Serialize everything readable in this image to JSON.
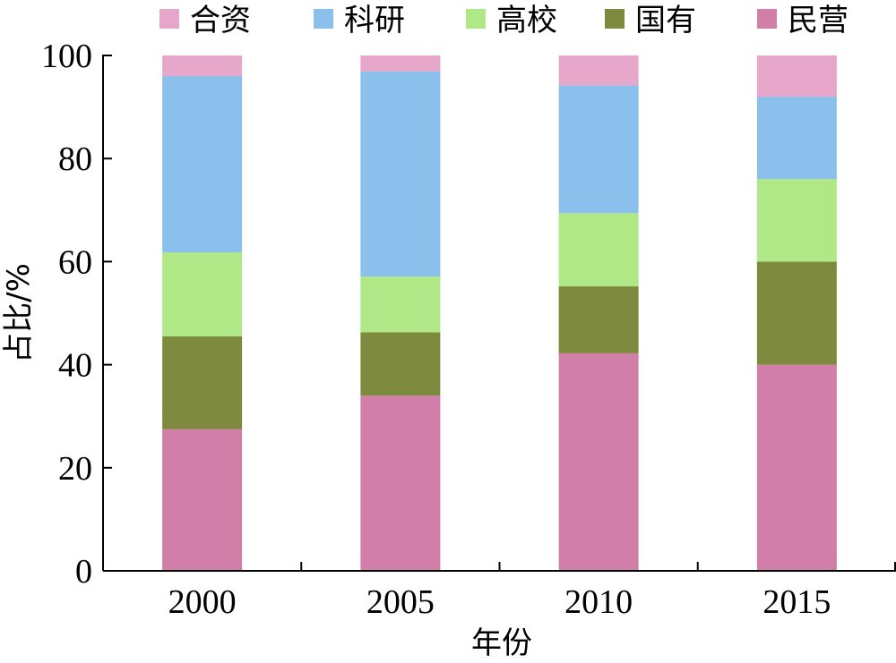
{
  "chart_data": {
    "type": "bar",
    "stacked": true,
    "categories": [
      "2000",
      "2005",
      "2010",
      "2015"
    ],
    "xlabel": "年份",
    "ylabel": "占比/%",
    "ylim": [
      0,
      100
    ],
    "yticks": [
      0,
      20,
      40,
      60,
      80,
      100
    ],
    "grid": false,
    "legend": {
      "placement": "top",
      "order": [
        "合资",
        "科研",
        "高校",
        "国有",
        "民营"
      ]
    },
    "series": [
      {
        "name": "民营",
        "color": "#D17FA8",
        "values": [
          27.5,
          34,
          42.2,
          40
        ]
      },
      {
        "name": "国有",
        "color": "#7E8B3E",
        "values": [
          18,
          12.3,
          13,
          20
        ]
      },
      {
        "name": "高校",
        "color": "#B1E887",
        "values": [
          16.3,
          10.8,
          14.2,
          16
        ]
      },
      {
        "name": "科研",
        "color": "#8BC0EC",
        "values": [
          34.2,
          39.8,
          24.8,
          16
        ]
      },
      {
        "name": "合资",
        "color": "#E6A7CB",
        "values": [
          4,
          3.1,
          5.8,
          8
        ]
      }
    ]
  }
}
